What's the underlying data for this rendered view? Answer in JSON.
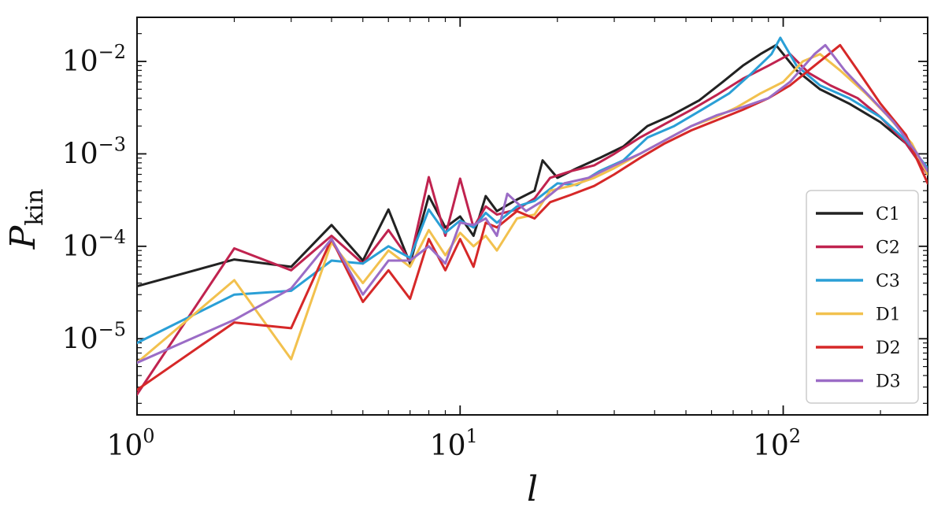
{
  "chart_data": {
    "type": "line",
    "xlabel": "l",
    "ylabel": {
      "main": "P",
      "sub": "kin"
    },
    "xscale": "log",
    "yscale": "log",
    "xlim": [
      1,
      280
    ],
    "ylim": [
      1.5e-06,
      0.03
    ],
    "x_ticks": [
      {
        "base": "10",
        "exp": "0",
        "value": 1
      },
      {
        "base": "10",
        "exp": "1",
        "value": 10
      },
      {
        "base": "10",
        "exp": "2",
        "value": 100
      }
    ],
    "y_ticks": [
      {
        "base": "10",
        "exp": "−5",
        "value": 1e-05
      },
      {
        "base": "10",
        "exp": "−4",
        "value": 0.0001
      },
      {
        "base": "10",
        "exp": "−3",
        "value": 0.001
      },
      {
        "base": "10",
        "exp": "−2",
        "value": 0.01
      }
    ],
    "grid": false,
    "legend_position": "lower-right",
    "series": [
      {
        "name": "C1",
        "color": "#222222",
        "points": [
          [
            1,
            3.7e-05
          ],
          [
            2,
            7.2e-05
          ],
          [
            3,
            6e-05
          ],
          [
            4,
            0.00017
          ],
          [
            5,
            7e-05
          ],
          [
            6,
            0.00025
          ],
          [
            7,
            6.5e-05
          ],
          [
            8,
            0.00035
          ],
          [
            9,
            0.00016
          ],
          [
            10,
            0.00021
          ],
          [
            11,
            0.00013
          ],
          [
            12,
            0.00035
          ],
          [
            13,
            0.00024
          ],
          [
            15,
            0.00032
          ],
          [
            17,
            0.0004
          ],
          [
            18,
            0.00085
          ],
          [
            20,
            0.00055
          ],
          [
            23,
            0.0007
          ],
          [
            27,
            0.0009
          ],
          [
            32,
            0.0012
          ],
          [
            38,
            0.002
          ],
          [
            45,
            0.0026
          ],
          [
            55,
            0.0038
          ],
          [
            65,
            0.006
          ],
          [
            75,
            0.009
          ],
          [
            85,
            0.012
          ],
          [
            95,
            0.015
          ],
          [
            110,
            0.008
          ],
          [
            130,
            0.005
          ],
          [
            160,
            0.0035
          ],
          [
            200,
            0.0022
          ],
          [
            240,
            0.0013
          ],
          [
            280,
            0.0006
          ]
        ]
      },
      {
        "name": "C2",
        "color": "#c0234f",
        "points": [
          [
            1,
            2.5e-06
          ],
          [
            2,
            9.5e-05
          ],
          [
            3,
            5.5e-05
          ],
          [
            4,
            0.00013
          ],
          [
            5,
            6.5e-05
          ],
          [
            6,
            0.00015
          ],
          [
            7,
            7e-05
          ],
          [
            8,
            0.00056
          ],
          [
            9,
            0.00013
          ],
          [
            10,
            0.00054
          ],
          [
            11,
            0.00016
          ],
          [
            12,
            0.00027
          ],
          [
            13,
            0.00022
          ],
          [
            15,
            0.00025
          ],
          [
            17,
            0.00033
          ],
          [
            19,
            0.00055
          ],
          [
            22,
            0.00065
          ],
          [
            26,
            0.00075
          ],
          [
            30,
            0.001
          ],
          [
            36,
            0.0015
          ],
          [
            43,
            0.0021
          ],
          [
            52,
            0.003
          ],
          [
            62,
            0.0043
          ],
          [
            75,
            0.0065
          ],
          [
            90,
            0.009
          ],
          [
            105,
            0.012
          ],
          [
            120,
            0.0075
          ],
          [
            140,
            0.0055
          ],
          [
            170,
            0.004
          ],
          [
            200,
            0.0025
          ],
          [
            240,
            0.0013
          ],
          [
            280,
            0.0006
          ]
        ]
      },
      {
        "name": "C3",
        "color": "#2a9fd6",
        "points": [
          [
            1,
            9e-06
          ],
          [
            2,
            3e-05
          ],
          [
            3,
            3.3e-05
          ],
          [
            4,
            7e-05
          ],
          [
            5,
            6.5e-05
          ],
          [
            6,
            0.0001
          ],
          [
            7,
            7.5e-05
          ],
          [
            8,
            0.00025
          ],
          [
            9,
            0.00014
          ],
          [
            10,
            0.00019
          ],
          [
            11,
            0.00016
          ],
          [
            12,
            0.00023
          ],
          [
            13,
            0.00018
          ],
          [
            15,
            0.00027
          ],
          [
            17,
            0.00031
          ],
          [
            20,
            0.00048
          ],
          [
            23,
            0.00046
          ],
          [
            27,
            0.00065
          ],
          [
            32,
            0.00085
          ],
          [
            38,
            0.0015
          ],
          [
            46,
            0.002
          ],
          [
            56,
            0.003
          ],
          [
            68,
            0.0045
          ],
          [
            80,
            0.0075
          ],
          [
            92,
            0.012
          ],
          [
            98,
            0.018
          ],
          [
            110,
            0.009
          ],
          [
            130,
            0.0055
          ],
          [
            160,
            0.004
          ],
          [
            200,
            0.0025
          ],
          [
            240,
            0.0014
          ],
          [
            280,
            0.0007
          ]
        ]
      },
      {
        "name": "D1",
        "color": "#f2c14e",
        "points": [
          [
            1,
            5.5e-06
          ],
          [
            2,
            4.3e-05
          ],
          [
            3,
            6e-06
          ],
          [
            4,
            0.00011
          ],
          [
            5,
            4e-05
          ],
          [
            6,
            9e-05
          ],
          [
            7,
            6e-05
          ],
          [
            8,
            0.00015
          ],
          [
            9,
            8e-05
          ],
          [
            10,
            0.00014
          ],
          [
            11,
            0.0001
          ],
          [
            12,
            0.00013
          ],
          [
            13,
            9e-05
          ],
          [
            15,
            0.0002
          ],
          [
            17,
            0.00022
          ],
          [
            19,
            0.0004
          ],
          [
            22,
            0.00045
          ],
          [
            26,
            0.00055
          ],
          [
            30,
            0.0007
          ],
          [
            36,
            0.001
          ],
          [
            43,
            0.0014
          ],
          [
            52,
            0.002
          ],
          [
            62,
            0.0025
          ],
          [
            72,
            0.0032
          ],
          [
            85,
            0.0045
          ],
          [
            100,
            0.006
          ],
          [
            115,
            0.01
          ],
          [
            130,
            0.012
          ],
          [
            150,
            0.008
          ],
          [
            180,
            0.0045
          ],
          [
            210,
            0.0026
          ],
          [
            250,
            0.0013
          ],
          [
            280,
            0.0006
          ]
        ]
      },
      {
        "name": "D2",
        "color": "#d62828",
        "points": [
          [
            1,
            2.8e-06
          ],
          [
            2,
            1.5e-05
          ],
          [
            3,
            1.3e-05
          ],
          [
            4,
            0.00012
          ],
          [
            5,
            2.5e-05
          ],
          [
            6,
            5.5e-05
          ],
          [
            7,
            2.7e-05
          ],
          [
            8,
            0.00012
          ],
          [
            9,
            5.5e-05
          ],
          [
            10,
            0.00012
          ],
          [
            11,
            6e-05
          ],
          [
            12,
            0.00018
          ],
          [
            13,
            0.00016
          ],
          [
            15,
            0.00024
          ],
          [
            17,
            0.0002
          ],
          [
            19,
            0.0003
          ],
          [
            22,
            0.00036
          ],
          [
            26,
            0.00045
          ],
          [
            30,
            0.0006
          ],
          [
            36,
            0.0009
          ],
          [
            43,
            0.0013
          ],
          [
            52,
            0.0018
          ],
          [
            62,
            0.0023
          ],
          [
            75,
            0.003
          ],
          [
            90,
            0.004
          ],
          [
            105,
            0.0055
          ],
          [
            125,
            0.009
          ],
          [
            150,
            0.015
          ],
          [
            170,
            0.008
          ],
          [
            200,
            0.0035
          ],
          [
            240,
            0.0016
          ],
          [
            280,
            0.00048
          ]
        ]
      },
      {
        "name": "D3",
        "color": "#9b6cc6",
        "points": [
          [
            1,
            5.5e-06
          ],
          [
            2,
            1.6e-05
          ],
          [
            3,
            3.5e-05
          ],
          [
            4,
            0.00012
          ],
          [
            5,
            3e-05
          ],
          [
            6,
            7e-05
          ],
          [
            7,
            7e-05
          ],
          [
            8,
            0.0001
          ],
          [
            9,
            6.5e-05
          ],
          [
            10,
            0.00018
          ],
          [
            11,
            0.00017
          ],
          [
            12,
            0.0002
          ],
          [
            13,
            0.00013
          ],
          [
            14,
            0.00037
          ],
          [
            16,
            0.00024
          ],
          [
            18,
            0.00031
          ],
          [
            21,
            0.00048
          ],
          [
            25,
            0.00055
          ],
          [
            30,
            0.00075
          ],
          [
            36,
            0.001
          ],
          [
            43,
            0.0014
          ],
          [
            52,
            0.002
          ],
          [
            62,
            0.0026
          ],
          [
            75,
            0.0032
          ],
          [
            90,
            0.004
          ],
          [
            105,
            0.006
          ],
          [
            125,
            0.012
          ],
          [
            135,
            0.015
          ],
          [
            155,
            0.008
          ],
          [
            185,
            0.0042
          ],
          [
            220,
            0.0022
          ],
          [
            260,
            0.001
          ],
          [
            280,
            0.00065
          ]
        ]
      }
    ]
  }
}
